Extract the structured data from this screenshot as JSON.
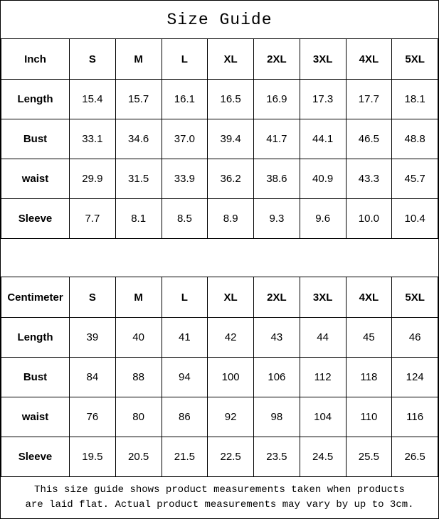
{
  "title": "Size Guide",
  "colors": {
    "border": "#000000",
    "text": "#000000",
    "background": "#ffffff"
  },
  "tables": [
    {
      "unit_label": "Inch",
      "columns": [
        "S",
        "M",
        "L",
        "XL",
        "2XL",
        "3XL",
        "4XL",
        "5XL"
      ],
      "rows": [
        {
          "label": "Length",
          "values": [
            "15.4",
            "15.7",
            "16.1",
            "16.5",
            "16.9",
            "17.3",
            "17.7",
            "18.1"
          ]
        },
        {
          "label": "Bust",
          "values": [
            "33.1",
            "34.6",
            "37.0",
            "39.4",
            "41.7",
            "44.1",
            "46.5",
            "48.8"
          ]
        },
        {
          "label": "waist",
          "values": [
            "29.9",
            "31.5",
            "33.9",
            "36.2",
            "38.6",
            "40.9",
            "43.3",
            "45.7"
          ]
        },
        {
          "label": "Sleeve",
          "values": [
            "7.7",
            "8.1",
            "8.5",
            "8.9",
            "9.3",
            "9.6",
            "10.0",
            "10.4"
          ]
        }
      ]
    },
    {
      "unit_label": "Centimeter",
      "columns": [
        "S",
        "M",
        "L",
        "XL",
        "2XL",
        "3XL",
        "4XL",
        "5XL"
      ],
      "rows": [
        {
          "label": "Length",
          "values": [
            "39",
            "40",
            "41",
            "42",
            "43",
            "44",
            "45",
            "46"
          ]
        },
        {
          "label": "Bust",
          "values": [
            "84",
            "88",
            "94",
            "100",
            "106",
            "112",
            "118",
            "124"
          ]
        },
        {
          "label": "waist",
          "values": [
            "76",
            "80",
            "86",
            "92",
            "98",
            "104",
            "110",
            "116"
          ]
        },
        {
          "label": "Sleeve",
          "values": [
            "19.5",
            "20.5",
            "21.5",
            "22.5",
            "23.5",
            "24.5",
            "25.5",
            "26.5"
          ]
        }
      ]
    }
  ],
  "footer": {
    "line1": "This size guide shows product measurements taken when products",
    "line2": "are laid flat. Actual product measurements may vary by up to 3cm."
  }
}
